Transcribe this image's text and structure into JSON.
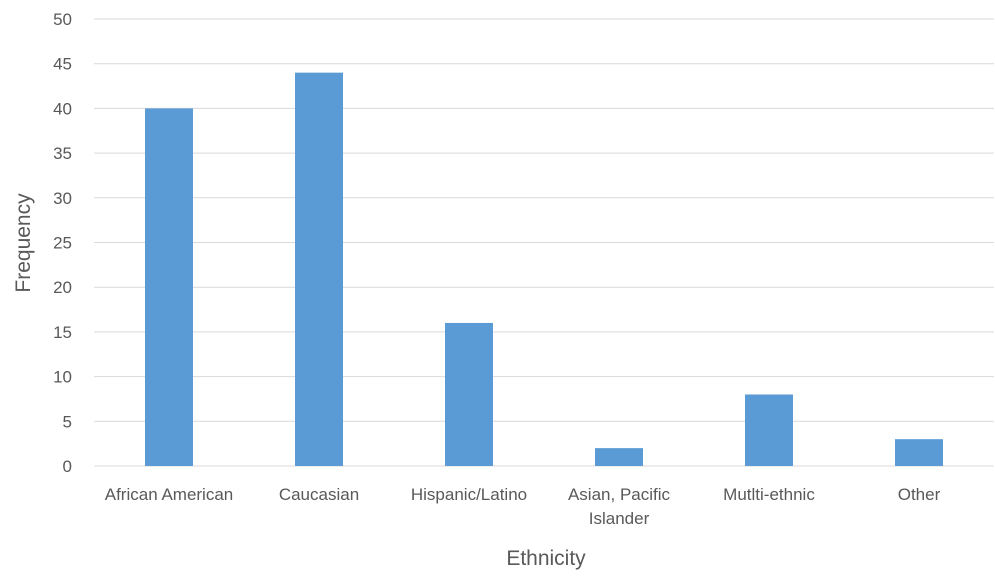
{
  "chart_data": {
    "type": "bar",
    "title": "",
    "xlabel": "Ethnicity",
    "ylabel": "Frequency",
    "categories": [
      [
        "African American"
      ],
      [
        "Caucasian"
      ],
      [
        "Hispanic/Latino"
      ],
      [
        "Asian, Pacific",
        "Islander"
      ],
      [
        "Mutlti-ethnic"
      ],
      [
        "Other"
      ]
    ],
    "values": [
      40,
      44,
      16,
      2,
      8,
      3
    ],
    "ylim": [
      0,
      50
    ],
    "yticks": [
      "0",
      "5",
      "10",
      "15",
      "20",
      "25",
      "30",
      "35",
      "40",
      "45",
      "50"
    ],
    "grid": true,
    "legend": "none",
    "bar_color": "#5b9bd5"
  }
}
